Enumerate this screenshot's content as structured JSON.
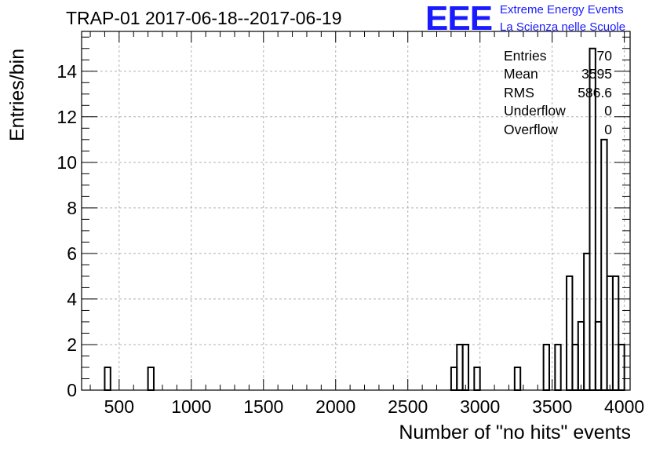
{
  "title": "TRAP-01 2017-06-18--2017-06-19",
  "logo": {
    "mark": "EEE",
    "line1": "Extreme Energy Events",
    "line2": "La Scienza nelle Scuole",
    "color": "#1a1aff"
  },
  "stats": [
    {
      "label": "Entries",
      "value": "70"
    },
    {
      "label": "Mean",
      "value": "3595"
    },
    {
      "label": "RMS",
      "value": "586.6"
    },
    {
      "label": "Underflow",
      "value": "0"
    },
    {
      "label": "Overflow",
      "value": "0"
    }
  ],
  "chart_data": {
    "type": "bar",
    "style": "step-histogram",
    "title": "TRAP-01 2017-06-18--2017-06-19",
    "xlabel": "Number of \"no hits\" events",
    "ylabel": "Entries/bin",
    "xlim": [
      240,
      4040
    ],
    "ylim": [
      0,
      15.75
    ],
    "grid": true,
    "x_ticks": [
      500,
      1000,
      1500,
      2000,
      2500,
      3000,
      3500,
      4000
    ],
    "y_ticks": [
      0,
      2,
      4,
      6,
      8,
      10,
      12,
      14
    ],
    "bin_width": 40,
    "bin_centers": [
      420,
      720,
      2820,
      2860,
      2900,
      2980,
      3260,
      3460,
      3540,
      3620,
      3660,
      3700,
      3740,
      3780,
      3820,
      3860,
      3900,
      3940,
      3980
    ],
    "counts": [
      1,
      1,
      1,
      2,
      2,
      1,
      1,
      2,
      2,
      5,
      2,
      3,
      6,
      15,
      3,
      11,
      5,
      5,
      2
    ]
  }
}
